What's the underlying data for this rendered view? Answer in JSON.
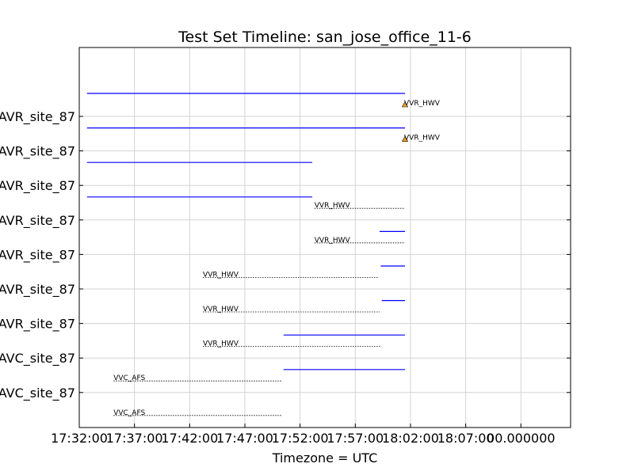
{
  "chart_data": {
    "type": "timeline",
    "title": "Test Set Timeline: san_jose_office_11-6",
    "xlabel": "Timezone = UTC",
    "ylabel": "",
    "grid": true,
    "x_tick_labels": [
      "17:32:00",
      "17:37:00",
      "17:42:00",
      "17:47:00",
      "17:52:00",
      "17:57:00",
      "18:02:00",
      "18:07:00",
      "00.000000"
    ],
    "x_tick_minutes": [
      0,
      5,
      10,
      15,
      20,
      25,
      30,
      35,
      40
    ],
    "xlim_minutes": [
      0,
      44.5
    ],
    "y_tick_labels": [
      "AVR_site_87",
      "AVR_site_87",
      "AVR_site_87",
      "AVR_site_87",
      "AVR_site_87",
      "AVR_site_87",
      "AVR_site_87",
      "AVC_site_87",
      "AVC_site_87"
    ],
    "rows": [
      {
        "solid": [
          0.7,
          29.5
        ],
        "dotted": null,
        "annotation": "VVR_HWV",
        "marker_at": 29.5
      },
      {
        "solid": [
          0.7,
          29.5
        ],
        "dotted": null,
        "annotation": "VVR_HWV",
        "marker_at": 29.5
      },
      {
        "solid": [
          0.7,
          21.1
        ],
        "dotted": [
          21.3,
          29.5
        ],
        "annotation": "VVR_HWV",
        "marker_at": null
      },
      {
        "solid": [
          0.7,
          21.1
        ],
        "dotted": [
          21.3,
          29.5
        ],
        "annotation": "VVR_HWV",
        "marker_at": null
      },
      {
        "solid": [
          27.2,
          29.5
        ],
        "dotted": [
          11.2,
          27.1
        ],
        "annotation": "VVR_HWV",
        "marker_at": null
      },
      {
        "solid": [
          27.3,
          29.5
        ],
        "dotted": [
          11.2,
          27.2
        ],
        "annotation": "VVR_HWV",
        "marker_at": null
      },
      {
        "solid": [
          27.4,
          29.5
        ],
        "dotted": [
          11.2,
          27.3
        ],
        "annotation": "VVR_HWV",
        "marker_at": null
      },
      {
        "solid": [
          18.5,
          29.5
        ],
        "dotted": [
          3.1,
          18.4
        ],
        "annotation": "VVC_AFS",
        "marker_at": null
      },
      {
        "solid": [
          18.5,
          29.5
        ],
        "dotted": [
          3.1,
          18.4
        ],
        "annotation": "VVC_AFS",
        "marker_at": null
      }
    ],
    "colors": {
      "solid_line": "#0000ff",
      "dotted_line": "#000000",
      "marker": "#f5a623",
      "grid": "#d3d3d3"
    }
  }
}
